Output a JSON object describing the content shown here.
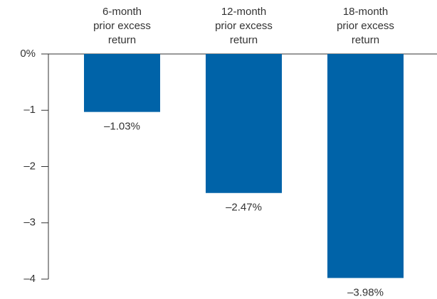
{
  "chart_data": {
    "type": "bar",
    "categories": [
      "6-month\nprior excess\nreturn",
      "12-month\nprior excess\nreturn",
      "18-month\nprior excess\nreturn"
    ],
    "values": [
      -1.03,
      -2.47,
      -3.98
    ],
    "value_labels": [
      "–1.03%",
      "–2.47%",
      "–3.98%"
    ],
    "color": "#0063a8",
    "ylim": [
      -4,
      0
    ],
    "yticks": [
      {
        "value": 0,
        "label": "0%"
      },
      {
        "value": -1,
        "label": "–1"
      },
      {
        "value": -2,
        "label": "–2"
      },
      {
        "value": -3,
        "label": "–3"
      },
      {
        "value": -4,
        "label": "–4"
      }
    ]
  }
}
